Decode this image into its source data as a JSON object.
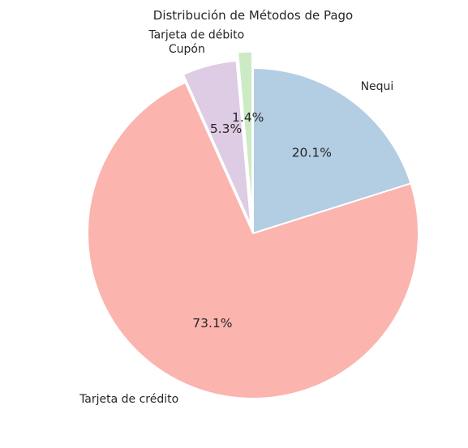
{
  "chart_data": {
    "type": "pie",
    "title": "Distribución de Métodos de Pago",
    "start_angle_deg": 90,
    "direction": "clockwise",
    "slices": [
      {
        "label": "Nequi",
        "value": 20.1,
        "pct_label": "20.1%",
        "color": "#b3cde3",
        "explode": 0
      },
      {
        "label": "Tarjeta de crédito",
        "value": 73.1,
        "pct_label": "73.1%",
        "color": "#fbb4ae",
        "explode": 0
      },
      {
        "label": "Cupón",
        "value": 5.3,
        "pct_label": "5.3%",
        "color": "#decbe4",
        "explode": 0.05
      },
      {
        "label": "Tarjeta de débito",
        "value": 1.4,
        "pct_label": "1.4%",
        "color": "#ccebc5",
        "explode": 0.1
      }
    ]
  }
}
